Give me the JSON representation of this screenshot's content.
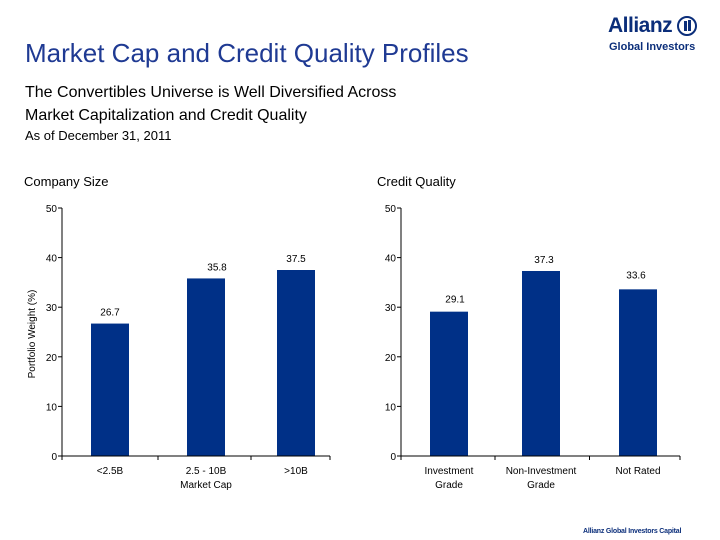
{
  "header": {
    "title": "Market Cap and Credit Quality Profiles",
    "subtitle_line1": "The Convertibles Universe is Well Diversified Across",
    "subtitle_line2": "Market Capitalization and Credit Quality",
    "as_of": "As of December 31, 2011"
  },
  "logo": {
    "name": "Allianz",
    "tagline": "Global Investors"
  },
  "footer": {
    "text": "Allianz Global Investors Capital"
  },
  "colors": {
    "bar": "#003087",
    "title": "#1f3a93",
    "axis": "#000000"
  },
  "chart_data": [
    {
      "type": "bar",
      "title": "Company Size",
      "ylabel": "Portfolio Weight (%)",
      "xlabel": "",
      "ylim": [
        0,
        50
      ],
      "yticks": [
        0,
        10,
        20,
        30,
        40,
        50
      ],
      "categories": [
        [
          "<2.5B"
        ],
        [
          "2.5 - 10B",
          "Market Cap"
        ],
        [
          ">10B"
        ]
      ],
      "values": [
        26.7,
        35.8,
        37.5
      ],
      "data_labels": [
        "26.7",
        "35.8",
        "37.5"
      ]
    },
    {
      "type": "bar",
      "title": "Credit Quality",
      "ylabel": "",
      "xlabel": "",
      "ylim": [
        0,
        50
      ],
      "yticks": [
        0,
        10,
        20,
        30,
        40,
        50
      ],
      "categories": [
        [
          "Investment",
          "Grade"
        ],
        [
          "Non-Investment",
          "Grade"
        ],
        [
          "Not Rated"
        ]
      ],
      "values": [
        29.1,
        37.3,
        33.6
      ],
      "data_labels": [
        "29.1",
        "37.3",
        "33.6"
      ]
    }
  ]
}
